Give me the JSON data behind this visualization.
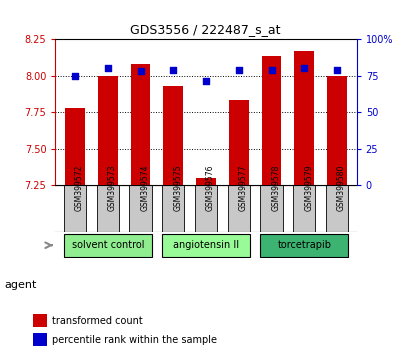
{
  "title": "GDS3556 / 222487_s_at",
  "samples": [
    "GSM399572",
    "GSM399573",
    "GSM399574",
    "GSM399575",
    "GSM399576",
    "GSM399577",
    "GSM399578",
    "GSM399579",
    "GSM399580"
  ],
  "red_values": [
    7.775,
    8.0,
    8.08,
    7.93,
    7.3,
    7.83,
    8.13,
    8.17,
    8.0
  ],
  "blue_values": [
    75,
    80,
    78,
    79,
    71,
    79,
    79,
    80,
    79
  ],
  "ylim_left": [
    7.25,
    8.25
  ],
  "ylim_right": [
    0,
    100
  ],
  "yticks_left": [
    7.25,
    7.5,
    7.75,
    8.0,
    8.25
  ],
  "yticks_right": [
    0,
    25,
    50,
    75,
    100
  ],
  "ytick_labels_right": [
    "0",
    "25",
    "50",
    "75",
    "100%"
  ],
  "groups": [
    {
      "label": "solvent control",
      "start": 0,
      "end": 3,
      "color": "#90EE90"
    },
    {
      "label": "angiotensin II",
      "start": 3,
      "end": 6,
      "color": "#98FB98"
    },
    {
      "label": "torcetrapib",
      "start": 6,
      "end": 9,
      "color": "#3CB371"
    }
  ],
  "bar_color": "#CC0000",
  "marker_color": "#0000CC",
  "bar_width": 0.6,
  "agent_label": "agent",
  "legend_red": "transformed count",
  "legend_blue": "percentile rank within the sample",
  "bg_color": "#FFFFFF",
  "left_tick_color": "#CC0000",
  "right_tick_color": "#0000CC",
  "baseline": 7.25,
  "sample_box_color": "#C8C8C8",
  "title_fontsize": 9,
  "tick_fontsize": 7,
  "legend_fontsize": 7
}
